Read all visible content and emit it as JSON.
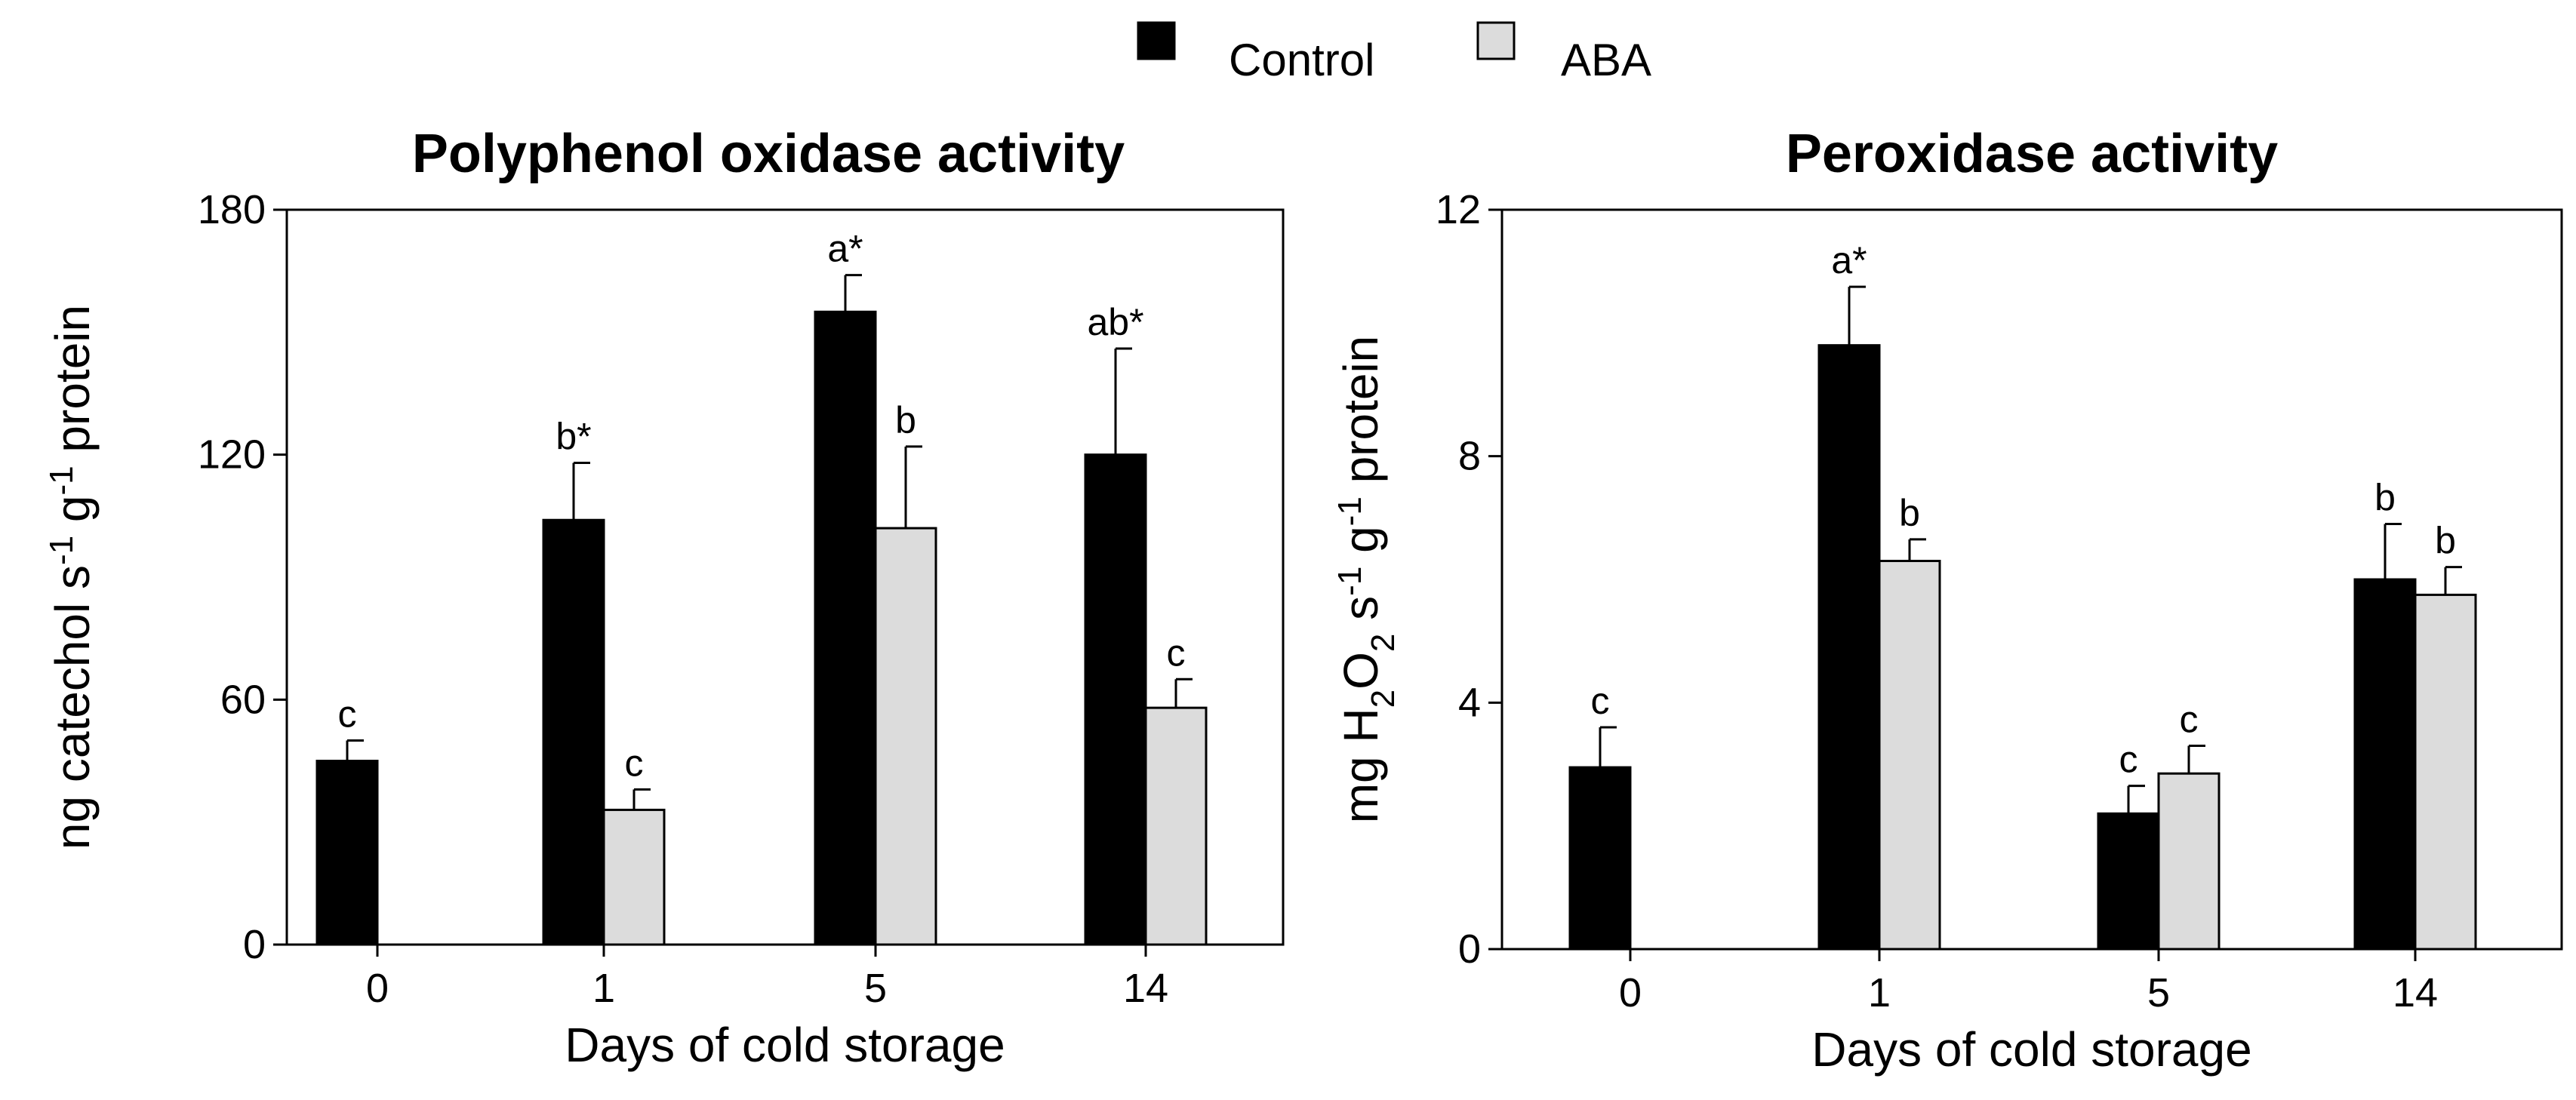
{
  "legend": {
    "entries": [
      {
        "label": "Control",
        "color": "#000000"
      },
      {
        "label": "ABA",
        "color": "#dcdcdc"
      }
    ]
  },
  "chart_data": [
    {
      "type": "bar",
      "title": "Polyphenol oxidase activity",
      "xlabel": "Days of cold storage",
      "ylabel": "ng catechol s-1 g-1 protein",
      "ylabel_parts": {
        "pre": "ng catechol s",
        "sup1": "-1",
        "mid": " g",
        "sup2": "-1",
        "post": " protein"
      },
      "ylim": [
        0,
        180
      ],
      "yticks": [
        0,
        60,
        120,
        180
      ],
      "categories": [
        "0",
        "1",
        "5",
        "14"
      ],
      "series": [
        {
          "name": "Control",
          "color": "#000000",
          "values": [
            45,
            104,
            155,
            120
          ],
          "errors": [
            5,
            14,
            9,
            26
          ],
          "labels": [
            "c",
            "b*",
            "a*",
            "ab*"
          ]
        },
        {
          "name": "ABA",
          "color": "#dcdcdc",
          "values": [
            null,
            33,
            102,
            58
          ],
          "errors": [
            null,
            5,
            20,
            7
          ],
          "labels": [
            "",
            "c",
            "b",
            "c"
          ]
        }
      ]
    },
    {
      "type": "bar",
      "title": "Peroxidase activity",
      "xlabel": "Days of cold storage",
      "ylabel": "mg H2O2 s-1 g-1 protein",
      "ylabel_parts": {
        "pre": "mg H",
        "sub1": "2",
        "mid1": "O",
        "sub2": "2",
        "mid2": " s",
        "sup1": "-1",
        "mid3": " g",
        "sup2": "-1",
        "post": " protein"
      },
      "ylim": [
        0,
        12
      ],
      "yticks": [
        0,
        4,
        8,
        12
      ],
      "categories": [
        "0",
        "1",
        "5",
        "14"
      ],
      "series": [
        {
          "name": "Control",
          "color": "#000000",
          "values": [
            2.95,
            9.8,
            2.2,
            6.0
          ],
          "errors": [
            0.65,
            0.95,
            0.45,
            0.9
          ],
          "labels": [
            "c",
            "a*",
            "c",
            "b"
          ]
        },
        {
          "name": "ABA",
          "color": "#dcdcdc",
          "values": [
            null,
            6.3,
            2.85,
            5.75
          ],
          "errors": [
            null,
            0.35,
            0.45,
            0.45
          ],
          "labels": [
            "",
            "b",
            "c",
            "b"
          ]
        }
      ]
    }
  ]
}
